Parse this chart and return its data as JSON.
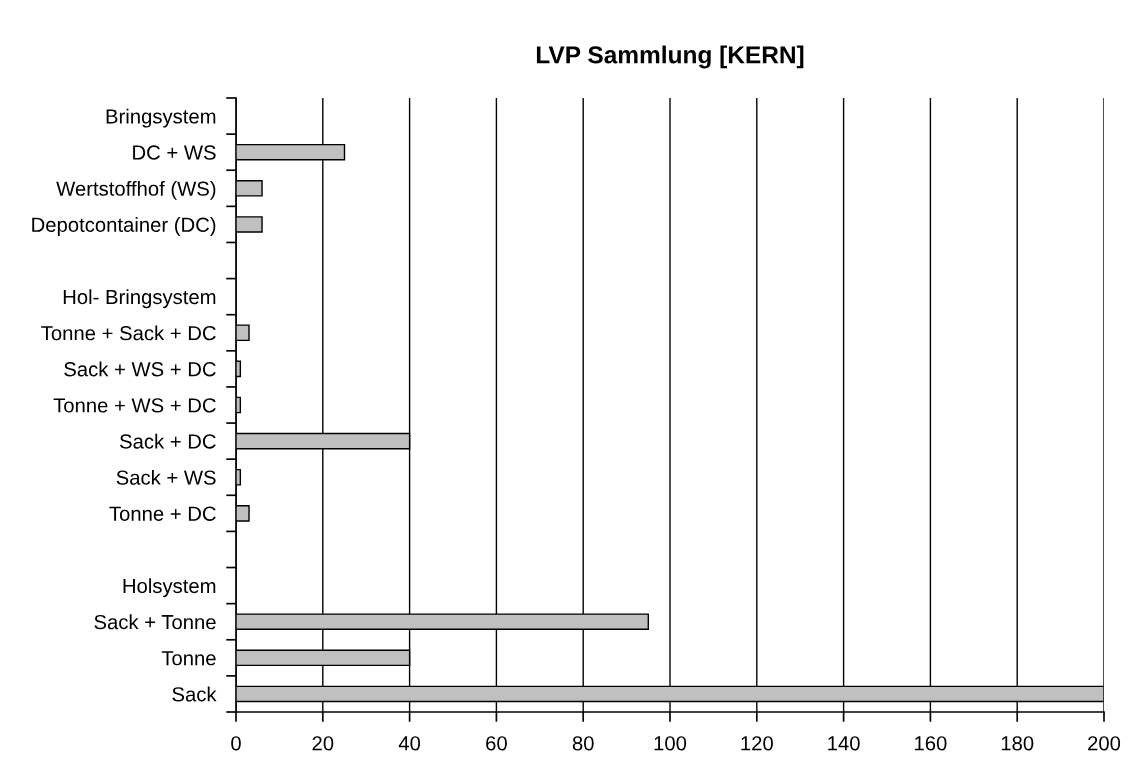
{
  "chart_data": {
    "type": "bar",
    "orientation": "horizontal",
    "title": "LVP Sammlung [KERN]",
    "categories": [
      "Bringsystem",
      "DC + WS",
      "Wertstoffhof (WS)",
      "Depotcontainer (DC)",
      null,
      "Hol- Bringsystem",
      "Tonne + Sack + DC",
      "Sack + WS + DC",
      "Tonne + WS + DC",
      "Sack + DC",
      "Sack + WS",
      "Tonne + DC",
      null,
      "Holsystem",
      "Sack + Tonne",
      "Tonne",
      "Sack"
    ],
    "values": [
      null,
      25,
      6,
      6,
      null,
      null,
      3,
      1,
      1,
      40,
      1,
      3,
      null,
      null,
      95,
      40,
      200
    ],
    "color": "#c0c0c0",
    "xlim": [
      0,
      200
    ],
    "xticks": [
      0,
      20,
      40,
      60,
      80,
      100,
      120,
      140,
      160,
      180,
      200
    ],
    "grid": "x"
  }
}
